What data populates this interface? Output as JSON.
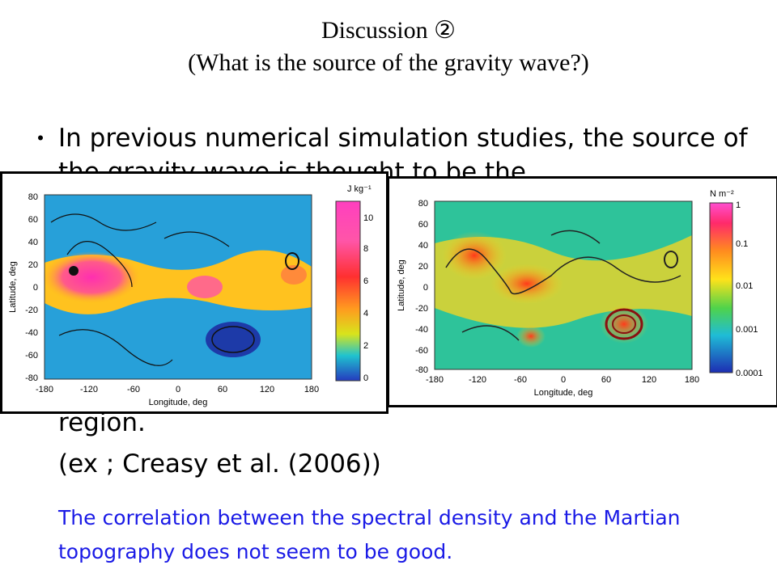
{
  "slide": {
    "title_line1": "Discussion ②",
    "title_line2": "(What is the source of the gravity wave?)",
    "bullet_marker": "・",
    "bullet_text": "In previous numerical simulation studies, the source of the gravity wave is thought to be the",
    "bullet_tail": "region.",
    "reference": "(ex ; Creasy et al. (2006))",
    "note": "The correlation between the spectral density and the Martian topography does not seem to be good."
  },
  "figures": {
    "left": {
      "ylabel": "Latitude, deg",
      "xlabel": "Longitude, deg",
      "lat_ticks": [
        "80",
        "60",
        "40",
        "20",
        "0",
        "-20",
        "-40",
        "-60",
        "-80"
      ],
      "lon_ticks": [
        "-180",
        "-120",
        "-60",
        "0",
        "60",
        "120",
        "180"
      ],
      "colorbar_unit": "J kg⁻¹",
      "colorbar_ticks": [
        "10",
        "8",
        "6",
        "4",
        "2",
        "0"
      ]
    },
    "right": {
      "ylabel": "Latitude, deg",
      "xlabel": "Longitude, deg",
      "lat_ticks": [
        "80",
        "60",
        "40",
        "20",
        "0",
        "-20",
        "-40",
        "-60",
        "-80"
      ],
      "lon_ticks": [
        "-180",
        "-120",
        "-60",
        "0",
        "60",
        "120",
        "180"
      ],
      "colorbar_unit": "N m⁻²",
      "colorbar_ticks": [
        "1",
        "0.1",
        "0.01",
        "0.001",
        "0.0001"
      ]
    }
  }
}
